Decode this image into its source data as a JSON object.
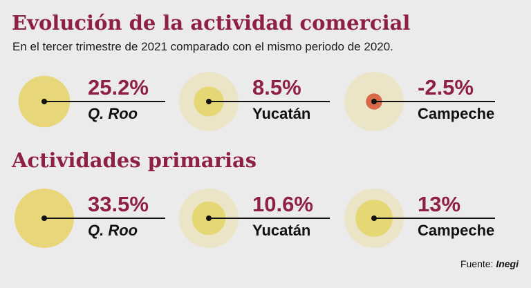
{
  "colors": {
    "accent": "#8e1f46",
    "circle_large": "#e7d77a",
    "circle_faint": "#ebe4c6",
    "circle_small": "#e5d773",
    "circle_negative": "#d86a4a",
    "line": "#111111"
  },
  "source": {
    "label": "Fuente:",
    "name": "Inegi"
  },
  "chart_data": [
    {
      "type": "bubble",
      "title": "Evolución de la actividad comercial",
      "subtitle": "En el tercer trimestre de 2021 comparado con el mismo periodo de 2020.",
      "categories": [
        "Q. Roo",
        "Yucatán",
        "Campeche"
      ],
      "values": [
        25.2,
        8.5,
        -2.5
      ],
      "value_labels": [
        "25.2%",
        "8.5%",
        "-2.5%"
      ]
    },
    {
      "type": "bubble",
      "title": "Actividades primarias",
      "categories": [
        "Q. Roo",
        "Yucatán",
        "Campeche"
      ],
      "values": [
        33.5,
        10.6,
        13
      ],
      "value_labels": [
        "33.5%",
        "10.6%",
        "13%"
      ]
    }
  ]
}
